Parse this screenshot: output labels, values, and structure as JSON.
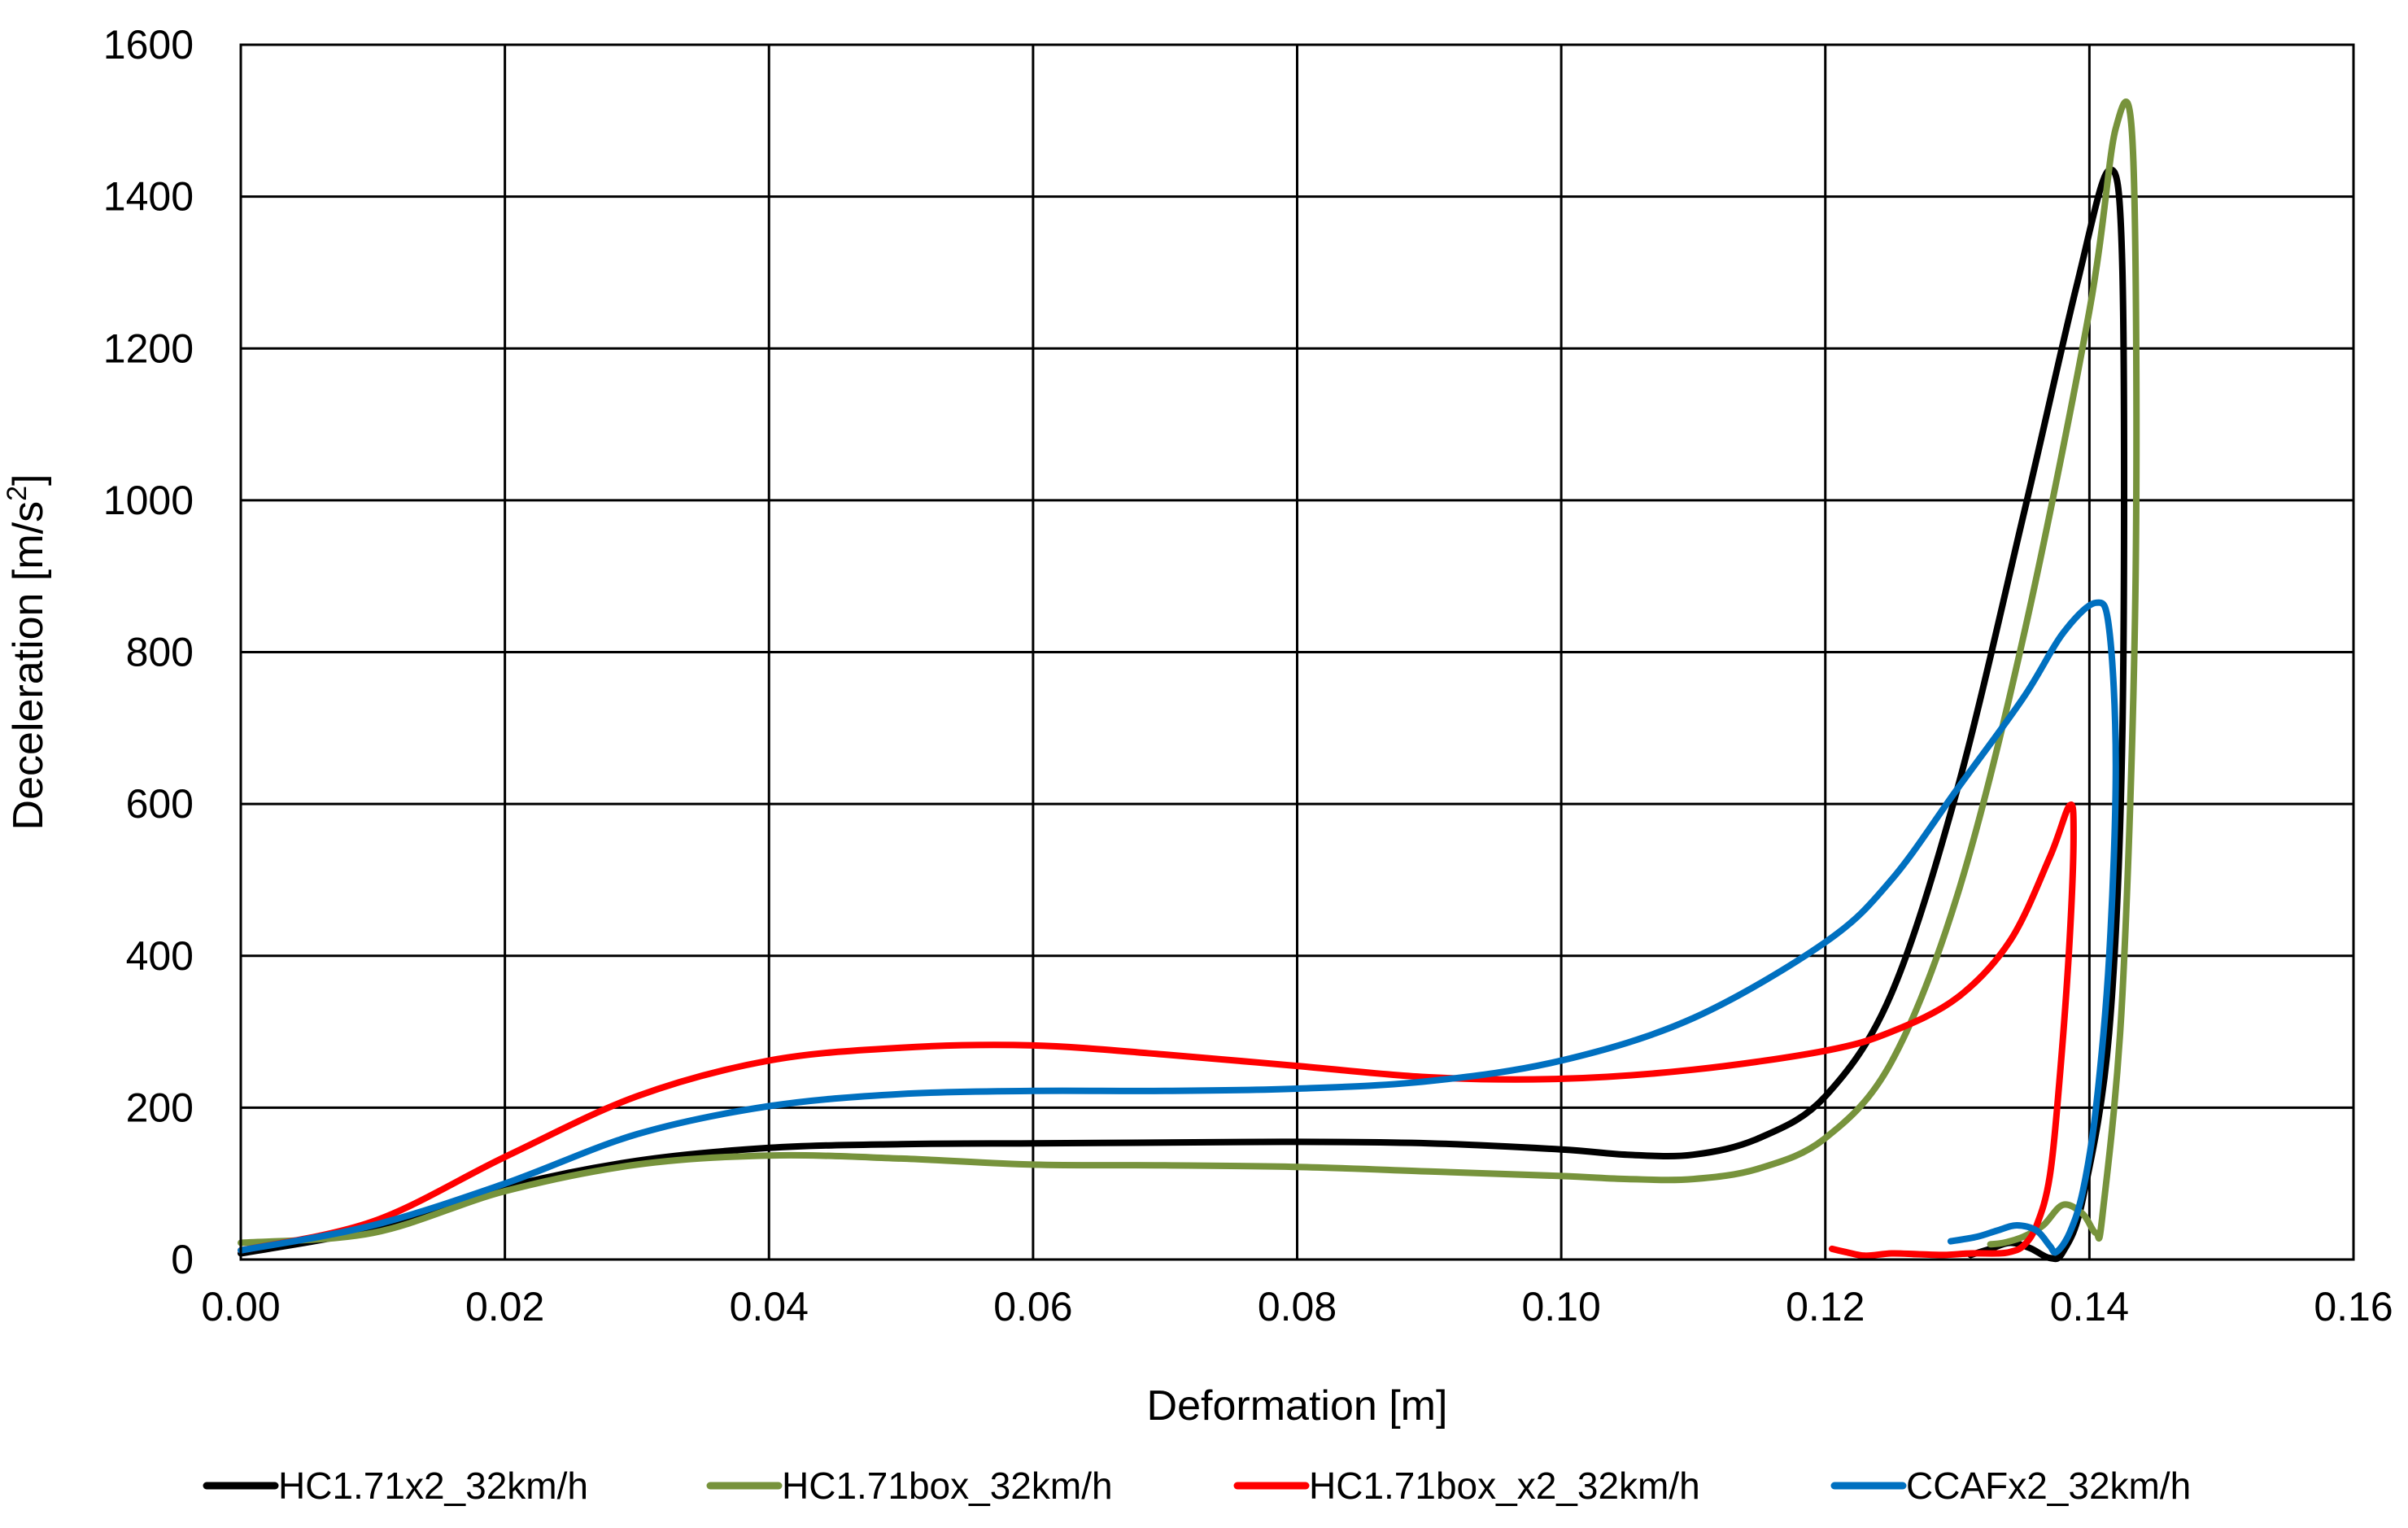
{
  "chart_data": {
    "type": "line",
    "title": "",
    "xlabel": "Deformation [m]",
    "ylabel_main": "Deceleration [m/s",
    "ylabel_sup": "2",
    "ylabel_close": "]",
    "xlim": [
      0,
      0.16
    ],
    "ylim": [
      0,
      1600
    ],
    "x_ticks": [
      0,
      0.02,
      0.04,
      0.06,
      0.08,
      0.1,
      0.12,
      0.14,
      0.16
    ],
    "x_tick_labels": [
      "0.00",
      "0.02",
      "0.04",
      "0.06",
      "0.08",
      "0.10",
      "0.12",
      "0.14",
      "0.16"
    ],
    "y_ticks": [
      0,
      200,
      400,
      600,
      800,
      1000,
      1200,
      1400,
      1600
    ],
    "y_tick_labels": [
      "0",
      "200",
      "400",
      "600",
      "800",
      "1000",
      "1200",
      "1400",
      "1600"
    ],
    "grid": true,
    "legend_position": "bottom",
    "series": [
      {
        "name": "HC1.71x2_32km/h",
        "color": "#000000",
        "segments": [
          [
            [
              0.0,
              8
            ],
            [
              0.01,
              40
            ],
            [
              0.02,
              95
            ],
            [
              0.03,
              130
            ],
            [
              0.04,
              147
            ],
            [
              0.05,
              152
            ],
            [
              0.06,
              153
            ],
            [
              0.07,
              154
            ],
            [
              0.08,
              155
            ],
            [
              0.09,
              153
            ],
            [
              0.1,
              145
            ],
            [
              0.105,
              138
            ],
            [
              0.11,
              138
            ],
            [
              0.115,
              160
            ],
            [
              0.12,
              215
            ],
            [
              0.125,
              350
            ],
            [
              0.13,
              620
            ],
            [
              0.135,
              980
            ],
            [
              0.139,
              1280
            ],
            [
              0.1415,
              1435
            ],
            [
              0.1425,
              1300
            ],
            [
              0.1425,
              700
            ],
            [
              0.1415,
              300
            ],
            [
              0.1395,
              80
            ],
            [
              0.138,
              10
            ],
            [
              0.137,
              2
            ],
            [
              0.1355,
              15
            ],
            [
              0.134,
              22
            ],
            [
              0.1325,
              14
            ],
            [
              0.131,
              6
            ]
          ]
        ]
      },
      {
        "name": "HC1.71box_32km/h",
        "color": "#77933C",
        "segments": [
          [
            [
              0.0,
              22
            ],
            [
              0.01,
              35
            ],
            [
              0.02,
              90
            ],
            [
              0.03,
              125
            ],
            [
              0.04,
              137
            ],
            [
              0.05,
              133
            ],
            [
              0.06,
              125
            ],
            [
              0.07,
              124
            ],
            [
              0.08,
              122
            ],
            [
              0.09,
              116
            ],
            [
              0.1,
              110
            ],
            [
              0.105,
              106
            ],
            [
              0.11,
              106
            ],
            [
              0.115,
              120
            ],
            [
              0.12,
              160
            ],
            [
              0.125,
              260
            ],
            [
              0.13,
              480
            ],
            [
              0.135,
              820
            ],
            [
              0.14,
              1250
            ],
            [
              0.142,
              1490
            ],
            [
              0.1433,
              1460
            ],
            [
              0.1435,
              900
            ],
            [
              0.1425,
              350
            ],
            [
              0.141,
              60
            ],
            [
              0.1405,
              35
            ],
            [
              0.1395,
              60
            ],
            [
              0.138,
              72
            ],
            [
              0.1365,
              45
            ],
            [
              0.135,
              30
            ],
            [
              0.1335,
              22
            ],
            [
              0.1325,
              20
            ]
          ]
        ]
      },
      {
        "name": "HC1.71box_x2_32km/h",
        "color": "#FF0000",
        "segments": [
          [
            [
              0.0,
              12
            ],
            [
              0.01,
              50
            ],
            [
              0.02,
              135
            ],
            [
              0.03,
              215
            ],
            [
              0.04,
              262
            ],
            [
              0.05,
              279
            ],
            [
              0.06,
              282
            ],
            [
              0.07,
              270
            ],
            [
              0.08,
              255
            ],
            [
              0.09,
              240
            ],
            [
              0.1,
              238
            ],
            [
              0.11,
              250
            ],
            [
              0.12,
              275
            ],
            [
              0.125,
              300
            ],
            [
              0.13,
              345
            ],
            [
              0.134,
              420
            ],
            [
              0.137,
              530
            ],
            [
              0.1385,
              598
            ],
            [
              0.1388,
              560
            ],
            [
              0.1385,
              420
            ],
            [
              0.1378,
              250
            ],
            [
              0.137,
              110
            ],
            [
              0.136,
              45
            ],
            [
              0.135,
              18
            ],
            [
              0.134,
              10
            ],
            [
              0.133,
              8
            ],
            [
              0.131,
              8
            ],
            [
              0.129,
              6
            ],
            [
              0.127,
              7
            ],
            [
              0.125,
              8
            ],
            [
              0.123,
              5
            ],
            [
              0.1215,
              10
            ],
            [
              0.1205,
              14
            ]
          ]
        ]
      },
      {
        "name": "CCAFx2_32km/h",
        "color": "#0070C0",
        "segments": [
          [
            [
              0.0,
              12
            ],
            [
              0.01,
              45
            ],
            [
              0.02,
              100
            ],
            [
              0.03,
              165
            ],
            [
              0.04,
              202
            ],
            [
              0.05,
              218
            ],
            [
              0.06,
              222
            ],
            [
              0.07,
              222
            ],
            [
              0.08,
              225
            ],
            [
              0.09,
              235
            ],
            [
              0.1,
              262
            ],
            [
              0.11,
              318
            ],
            [
              0.12,
              418
            ],
            [
              0.125,
              500
            ],
            [
              0.13,
              620
            ],
            [
              0.135,
              740
            ],
            [
              0.138,
              825
            ],
            [
              0.1405,
              865
            ],
            [
              0.1415,
              830
            ],
            [
              0.142,
              650
            ],
            [
              0.1415,
              400
            ],
            [
              0.1405,
              200
            ],
            [
              0.1395,
              90
            ],
            [
              0.1385,
              35
            ],
            [
              0.1375,
              10
            ],
            [
              0.137,
              18
            ],
            [
              0.136,
              38
            ],
            [
              0.1345,
              45
            ],
            [
              0.133,
              38
            ],
            [
              0.1315,
              30
            ],
            [
              0.1295,
              24
            ]
          ]
        ]
      }
    ]
  }
}
